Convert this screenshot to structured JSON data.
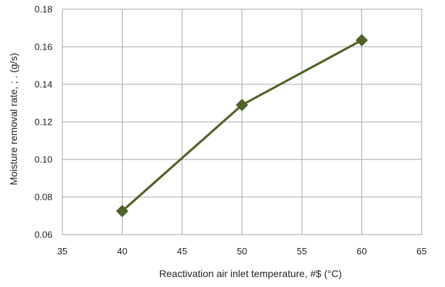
{
  "chart_data": {
    "type": "line",
    "x": [
      40,
      50,
      60
    ],
    "series": [
      {
        "values": [
          0.0725,
          0.129,
          0.1635
        ]
      }
    ],
    "xlabel": "Reactivation air inlet temperature, #$ (°C)",
    "ylabel": "Moisture removal rate, ; .   (g/s)",
    "xlim": [
      35,
      65
    ],
    "ylim": [
      0.06,
      0.18
    ],
    "xticks": [
      "35",
      "40",
      "45",
      "50",
      "55",
      "60",
      "65"
    ],
    "yticks": [
      "0.06",
      "0.08",
      "0.10",
      "0.12",
      "0.14",
      "0.16",
      "0.18"
    ],
    "grid": true,
    "line_color": "#4f6228",
    "marker": "diamond"
  }
}
